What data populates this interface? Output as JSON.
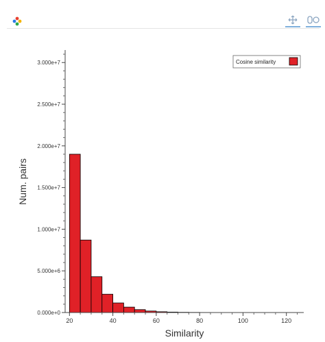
{
  "toolbar": {
    "logo_icon": "bokeh-logo-icon",
    "tools": [
      {
        "name": "pan-tool",
        "icon": "pan-move-icon"
      },
      {
        "name": "wheel-zoom-tool",
        "icon": "wheel-zoom-icon"
      }
    ],
    "accent_color": "#7fb0dd"
  },
  "chart_data": {
    "type": "bar",
    "xlabel": "Similarity",
    "ylabel": "Num. pairs",
    "xlim": [
      18,
      128
    ],
    "ylim": [
      0,
      31500000
    ],
    "xticks": [
      "20",
      "40",
      "60",
      "80",
      "100",
      "120"
    ],
    "yticks": [
      "0.000e+0",
      "5.000e+6",
      "1.000e+7",
      "1.500e+7",
      "2.000e+7",
      "2.500e+7",
      "3.000e+7"
    ],
    "bin_width": 5,
    "bins": [
      {
        "x": 20,
        "value": 19000000
      },
      {
        "x": 25,
        "value": 8700000
      },
      {
        "x": 30,
        "value": 4300000
      },
      {
        "x": 35,
        "value": 2200000
      },
      {
        "x": 40,
        "value": 1150000
      },
      {
        "x": 45,
        "value": 650000
      },
      {
        "x": 50,
        "value": 350000
      },
      {
        "x": 55,
        "value": 180000
      },
      {
        "x": 60,
        "value": 95000
      },
      {
        "x": 65,
        "value": 55000
      },
      {
        "x": 70,
        "value": 30000
      },
      {
        "x": 75,
        "value": 18000
      },
      {
        "x": 80,
        "value": 10000
      },
      {
        "x": 85,
        "value": 6000
      },
      {
        "x": 90,
        "value": 3000
      },
      {
        "x": 95,
        "value": 1500
      }
    ],
    "series": [
      {
        "name": "Cosine similarity",
        "color": "#e02127"
      }
    ],
    "legend_position": "top-right",
    "grid": false
  }
}
